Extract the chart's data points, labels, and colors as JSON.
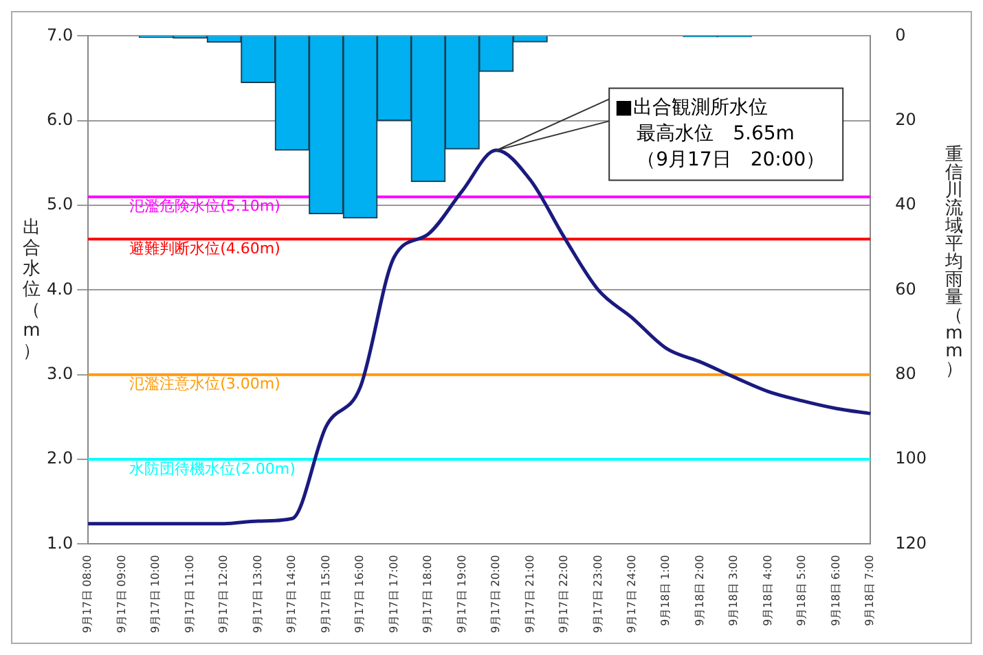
{
  "chart_data": {
    "type": "line",
    "ylabel": "出合水位（m）",
    "y2label": "重信川流域平均雨量（mm）",
    "categories": [
      "9月17日 08:00",
      "9月17日 09:00",
      "9月17日 10:00",
      "9月17日 11:00",
      "9月17日 12:00",
      "9月17日 13:00",
      "9月17日 14:00",
      "9月17日 15:00",
      "9月17日 16:00",
      "9月17日 17:00",
      "9月17日 18:00",
      "9月17日 19:00",
      "9月17日 20:00",
      "9月17日 21:00",
      "9月17日 22:00",
      "9月17日 23:00",
      "9月17日 24:00",
      "9月18日 1:00",
      "9月18日 2:00",
      "9月18日 3:00",
      "9月18日 4:00",
      "9月18日 5:00",
      "9月18日 6:00",
      "9月18日 7:00"
    ],
    "series": [
      {
        "type": "bar",
        "axis": "y2",
        "color": "#00b0f0",
        "values": [
          0,
          0,
          0.3,
          0.5,
          1.5,
          11,
          27,
          42,
          43,
          20,
          34.4,
          26.7,
          8.4,
          1.4,
          0,
          0,
          0,
          0,
          0.2,
          0.2,
          0,
          0,
          0,
          0
        ]
      },
      {
        "color": "#1a1a80",
        "values": [
          1.24,
          1.24,
          1.24,
          1.24,
          1.24,
          1.27,
          1.3,
          2.39,
          2.85,
          4.39,
          4.66,
          5.17,
          5.65,
          5.3,
          4.62,
          4.0,
          3.67,
          3.31,
          3.15,
          2.97,
          2.8,
          2.69,
          2.6,
          2.54
        ]
      }
    ],
    "ylim": [
      1,
      7
    ],
    "yticks": [
      {
        "value": 1,
        "label": "1.0"
      },
      {
        "value": 2,
        "label": "2.0"
      },
      {
        "value": 3,
        "label": "3.0"
      },
      {
        "value": 4,
        "label": "4.0"
      },
      {
        "value": 5,
        "label": "5.0"
      },
      {
        "value": 6,
        "label": "6.0"
      },
      {
        "value": 7,
        "label": "7.0"
      }
    ],
    "y2lim": [
      120,
      0
    ],
    "y2ticks": [
      0,
      20,
      40,
      60,
      80,
      100,
      120
    ],
    "grid": "y",
    "marker": "none",
    "line_style": "solid",
    "ref_lines": [
      {
        "axis": "y",
        "value": 5.1,
        "label": "氾濫危険水位(5.10m)",
        "color": "#ff00ff"
      },
      {
        "axis": "y",
        "value": 4.6,
        "label": "避難判断水位(4.60m)",
        "color": "#ff0000"
      },
      {
        "axis": "y",
        "value": 3.0,
        "label": "氾濫注意水位(3.00m)",
        "color": "#ff9900"
      },
      {
        "axis": "y",
        "value": 2.0,
        "label": "水防団待機水位(2.00m)",
        "color": "#00ffff"
      }
    ],
    "annotations": [
      "■出合観測所水位",
      "最高水位　5.65m",
      "（9月17日　20:00）"
    ]
  }
}
